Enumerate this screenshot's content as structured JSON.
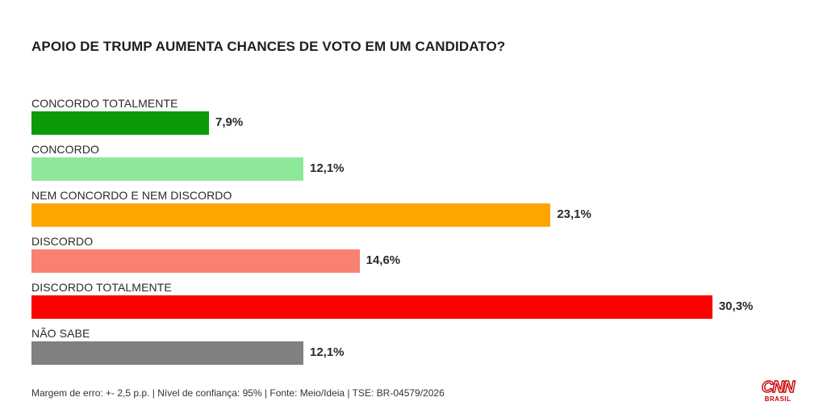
{
  "chart_data": {
    "type": "bar",
    "orientation": "horizontal",
    "title": "APOIO DE TRUMP AUMENTA CHANCES DE VOTO EM UM CANDIDATO?",
    "categories": [
      "CONCORDO TOTALMENTE",
      "CONCORDO",
      "NEM CONCORDO E NEM DISCORDO",
      "DISCORDO",
      "DISCORDO TOTALMENTE",
      "NÃO SABE"
    ],
    "values": [
      7.9,
      12.1,
      23.1,
      14.6,
      30.3,
      12.1
    ],
    "value_labels": [
      "7,9%",
      "12,1%",
      "23,1%",
      "14,6%",
      "30,3%",
      "12,1%"
    ],
    "colors": [
      "#0a9a0a",
      "#8ee89a",
      "#ffa500",
      "#fa8072",
      "#ff0000",
      "#808080"
    ],
    "xlim": [
      0,
      34
    ],
    "grid": false,
    "legend": "none"
  },
  "footer": "Margem de erro: +- 2,5 p.p. | Nível de confiança: 95% | Fonte: Meio/Ideia | TSE: BR-04579/2026",
  "logo": {
    "text": "CNN",
    "subtext": "BRASIL",
    "color": "#cc0000"
  }
}
